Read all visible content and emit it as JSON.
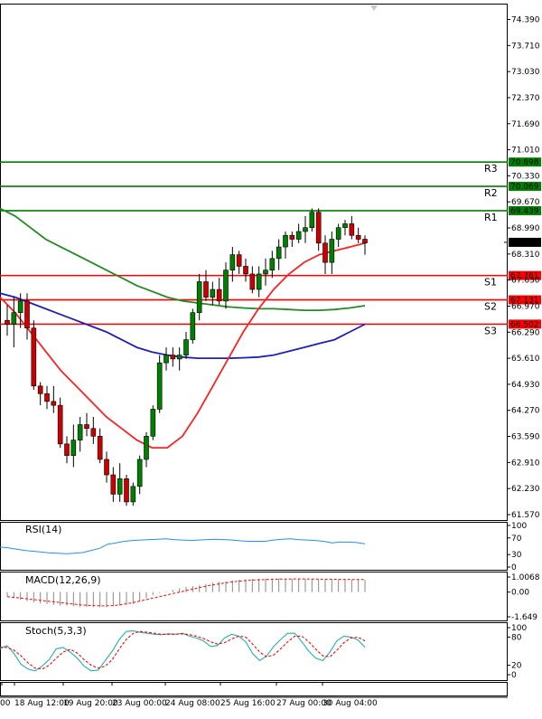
{
  "chart_data": {
    "type": "candlestick",
    "main": {
      "y_ticks": [
        "74.390",
        "73.710",
        "73.030",
        "72.370",
        "71.690",
        "71.010",
        "70.330",
        "69.670",
        "68.990",
        "68.310",
        "67.630",
        "66.970",
        "66.290",
        "65.610",
        "64.930",
        "64.270",
        "63.590",
        "62.910",
        "62.230",
        "61.570"
      ],
      "ylim": [
        61.43,
        74.8
      ],
      "tick_start": 74.39,
      "tick_step": 0.6747,
      "price_label": "68.620",
      "price": 68.62,
      "levels": [
        {
          "name": "R3",
          "value": 70.698,
          "label": "70.698",
          "color": "#008000"
        },
        {
          "name": "R2",
          "value": 70.069,
          "label": "70.069",
          "color": "#008000"
        },
        {
          "name": "R1",
          "value": 69.439,
          "label": "69.439",
          "color": "#008000"
        },
        {
          "name": "S1",
          "value": 67.761,
          "label": "67.761",
          "color": "#ff0000"
        },
        {
          "name": "S2",
          "value": 67.131,
          "label": "67.131",
          "color": "#ff0000"
        },
        {
          "name": "S3",
          "value": 66.502,
          "label": "66.502",
          "color": "#ff0000"
        }
      ],
      "candles": [
        [
          66.6,
          67.0,
          66.2,
          66.5
        ],
        [
          66.5,
          67.2,
          65.9,
          66.8
        ],
        [
          66.8,
          67.3,
          66.4,
          67.1
        ],
        [
          67.1,
          67.3,
          66.1,
          66.4
        ],
        [
          66.4,
          66.6,
          64.8,
          64.9
        ],
        [
          64.9,
          65.0,
          64.4,
          64.7
        ],
        [
          64.7,
          64.9,
          64.3,
          64.5
        ],
        [
          64.5,
          64.9,
          64.2,
          64.4
        ],
        [
          64.4,
          64.6,
          63.3,
          63.4
        ],
        [
          63.4,
          63.6,
          62.9,
          63.1
        ],
        [
          63.1,
          63.9,
          62.8,
          63.5
        ],
        [
          63.5,
          64.1,
          63.2,
          63.9
        ],
        [
          63.9,
          64.2,
          63.6,
          63.8
        ],
        [
          63.8,
          64.1,
          63.4,
          63.6
        ],
        [
          63.6,
          63.8,
          62.9,
          63.0
        ],
        [
          63.0,
          63.2,
          62.4,
          62.6
        ],
        [
          62.6,
          62.8,
          61.9,
          62.1
        ],
        [
          62.1,
          62.9,
          61.9,
          62.5
        ],
        [
          62.5,
          62.6,
          61.8,
          61.9
        ],
        [
          61.9,
          62.4,
          61.8,
          62.3
        ],
        [
          62.3,
          63.1,
          62.1,
          63.0
        ],
        [
          63.0,
          63.7,
          62.8,
          63.6
        ],
        [
          63.6,
          64.4,
          63.5,
          64.3
        ],
        [
          64.3,
          65.7,
          64.2,
          65.5
        ],
        [
          65.5,
          65.9,
          65.3,
          65.7
        ],
        [
          65.7,
          65.9,
          65.4,
          65.6
        ],
        [
          65.6,
          65.9,
          65.3,
          65.7
        ],
        [
          65.7,
          66.3,
          65.6,
          66.1
        ],
        [
          66.1,
          66.9,
          66.0,
          66.8
        ],
        [
          66.8,
          67.8,
          66.6,
          67.6
        ],
        [
          67.6,
          67.9,
          67.1,
          67.2
        ],
        [
          67.2,
          67.6,
          67.0,
          67.4
        ],
        [
          67.4,
          67.7,
          67.0,
          67.1
        ],
        [
          67.1,
          68.1,
          66.9,
          67.9
        ],
        [
          67.9,
          68.5,
          67.6,
          68.3
        ],
        [
          68.3,
          68.4,
          67.8,
          68.0
        ],
        [
          68.0,
          68.2,
          67.6,
          67.8
        ],
        [
          67.8,
          68.0,
          67.3,
          67.4
        ],
        [
          67.4,
          68.0,
          67.2,
          67.8
        ],
        [
          67.8,
          68.2,
          67.5,
          67.9
        ],
        [
          67.9,
          68.4,
          67.7,
          68.2
        ],
        [
          68.2,
          68.7,
          67.9,
          68.5
        ],
        [
          68.5,
          68.9,
          68.2,
          68.8
        ],
        [
          68.8,
          68.9,
          68.5,
          68.7
        ],
        [
          68.7,
          69.1,
          68.6,
          68.9
        ],
        [
          68.9,
          69.3,
          68.6,
          69.0
        ],
        [
          69.0,
          69.5,
          68.9,
          69.4
        ],
        [
          69.4,
          69.5,
          68.4,
          68.6
        ],
        [
          68.6,
          68.8,
          67.8,
          68.1
        ],
        [
          68.1,
          68.9,
          67.8,
          68.7
        ],
        [
          68.7,
          69.1,
          68.5,
          69.0
        ],
        [
          69.0,
          69.2,
          68.8,
          69.1
        ],
        [
          69.1,
          69.3,
          68.7,
          68.8
        ],
        [
          68.8,
          69.0,
          68.6,
          68.7
        ],
        [
          68.7,
          68.8,
          68.3,
          68.6
        ]
      ],
      "ma_red": [
        67.2,
        66.8,
        66.3,
        65.8,
        65.3,
        64.9,
        64.5,
        64.1,
        63.8,
        63.5,
        63.3,
        63.3,
        63.6,
        64.2,
        64.9,
        65.6,
        66.3,
        66.9,
        67.4,
        67.8,
        68.1,
        68.3,
        68.4,
        68.5,
        68.6
      ],
      "ma_blue": [
        67.3,
        67.2,
        67.05,
        66.9,
        66.75,
        66.6,
        66.45,
        66.3,
        66.1,
        65.9,
        65.78,
        65.7,
        65.65,
        65.62,
        65.62,
        65.62,
        65.63,
        65.65,
        65.7,
        65.8,
        65.9,
        66.0,
        66.1,
        66.3,
        66.5
      ],
      "ma_green": [
        69.5,
        69.3,
        69.0,
        68.7,
        68.5,
        68.3,
        68.1,
        67.9,
        67.7,
        67.5,
        67.35,
        67.2,
        67.1,
        67.05,
        67.0,
        66.95,
        66.92,
        66.9,
        66.9,
        66.88,
        66.86,
        66.86,
        66.88,
        66.92,
        66.98
      ]
    },
    "rsi": {
      "label": "RSI(14)",
      "ticks": [
        "100",
        "70",
        "30",
        "0"
      ],
      "values": [
        48,
        46,
        43,
        40,
        38,
        36,
        34,
        33,
        32,
        33,
        35,
        40,
        45,
        55,
        58,
        62,
        64,
        65,
        66,
        67,
        68,
        66,
        65,
        64,
        65,
        66,
        67,
        66,
        65,
        63,
        62,
        62,
        62,
        65,
        67,
        68,
        66,
        65,
        64,
        62,
        58,
        60,
        60,
        59,
        56
      ]
    },
    "macd": {
      "label": "MACD(12,26,9)",
      "ticks": [
        "1.0068",
        "0.00",
        "-1.649"
      ],
      "hist": [
        -0.3,
        -0.4,
        -0.5,
        -0.6,
        -0.7,
        -0.75,
        -0.8,
        -0.85,
        -0.9,
        -0.9,
        -0.95,
        -1.0,
        -1.0,
        -1.0,
        -1.0,
        -1.0,
        -0.95,
        -0.9,
        -0.85,
        -0.8,
        -0.6,
        -0.4,
        -0.2,
        -0.05,
        0.05,
        0.15,
        0.25,
        0.35,
        0.4,
        0.45,
        0.55,
        0.62,
        0.68,
        0.72,
        0.78,
        0.82,
        0.85,
        0.88,
        0.9,
        0.9,
        0.9,
        0.92,
        0.9,
        0.88,
        0.88,
        0.86,
        0.85,
        0.86,
        0.85,
        0.84,
        0.84,
        0.84,
        0.82,
        0.82,
        0.82
      ],
      "signal": [
        -0.3,
        -0.35,
        -0.4,
        -0.45,
        -0.5,
        -0.55,
        -0.6,
        -0.65,
        -0.7,
        -0.75,
        -0.8,
        -0.85,
        -0.88,
        -0.9,
        -0.92,
        -0.92,
        -0.9,
        -0.85,
        -0.78,
        -0.7,
        -0.6,
        -0.5,
        -0.4,
        -0.3,
        -0.2,
        -0.1,
        0.0,
        0.1,
        0.2,
        0.3,
        0.4,
        0.48,
        0.55,
        0.62,
        0.68,
        0.73,
        0.77,
        0.8,
        0.82,
        0.84,
        0.86,
        0.87,
        0.87,
        0.88,
        0.88,
        0.88,
        0.87,
        0.87,
        0.86,
        0.86,
        0.85,
        0.85,
        0.84,
        0.84,
        0.84
      ]
    },
    "stoch": {
      "label": "Stoch(5,3,3)",
      "ticks": [
        "100",
        "80",
        "20",
        "0"
      ],
      "k": [
        55,
        62,
        45,
        22,
        12,
        8,
        18,
        32,
        55,
        58,
        48,
        35,
        18,
        8,
        10,
        30,
        50,
        75,
        92,
        93,
        90,
        88,
        86,
        85,
        87,
        86,
        88,
        82,
        78,
        72,
        60,
        62,
        78,
        86,
        82,
        70,
        45,
        30,
        40,
        60,
        75,
        88,
        88,
        70,
        50,
        35,
        30,
        48,
        72,
        82,
        80,
        74,
        58
      ],
      "d": [
        58,
        58,
        52,
        40,
        25,
        14,
        12,
        20,
        35,
        48,
        54,
        46,
        32,
        20,
        14,
        18,
        32,
        55,
        75,
        88,
        92,
        90,
        88,
        86,
        86,
        86,
        87,
        85,
        82,
        77,
        70,
        65,
        68,
        76,
        82,
        80,
        65,
        48,
        38,
        42,
        55,
        70,
        82,
        82,
        70,
        54,
        40,
        38,
        52,
        68,
        78,
        80,
        72
      ]
    },
    "x_labels": [
      "00",
      "18 Aug 12:00",
      "19 Aug 20:00",
      "23 Aug 00:00",
      "24 Aug 08:00",
      "25 Aug 16:00",
      "27 Aug 00:00",
      "30 Aug 04:00"
    ]
  }
}
